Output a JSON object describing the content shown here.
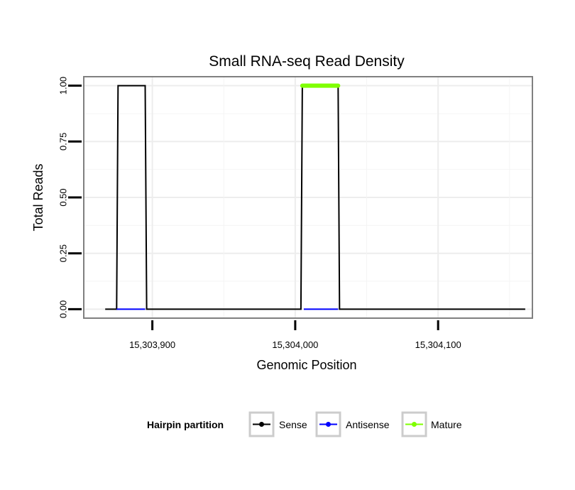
{
  "chart_data": {
    "type": "line",
    "title": "Small RNA-seq Read Density",
    "xlabel": "Genomic Position",
    "ylabel": "Total Reads",
    "xlim": [
      15303852,
      15304166
    ],
    "ylim": [
      -0.04,
      1.04
    ],
    "x_ticks": [
      {
        "value": 15303900,
        "label": "15,303,900"
      },
      {
        "value": 15304000,
        "label": "15,304,000"
      },
      {
        "value": 15304100,
        "label": "15,304,100"
      }
    ],
    "y_ticks": [
      {
        "value": 0.0,
        "label": "0.00"
      },
      {
        "value": 0.25,
        "label": "0.25"
      },
      {
        "value": 0.5,
        "label": "0.50"
      },
      {
        "value": 0.75,
        "label": "0.75"
      },
      {
        "value": 1.0,
        "label": "1.00"
      }
    ],
    "grid": true,
    "series": [
      {
        "name": "Sense",
        "color": "#000000",
        "x": [
          15303867,
          15303875,
          15303876,
          15303895,
          15303896,
          15304004,
          15304005,
          15304030,
          15304031,
          15304161
        ],
        "y": [
          0,
          0,
          1,
          1,
          0,
          0,
          1,
          1,
          0,
          0
        ]
      },
      {
        "name": "Antisense",
        "color": "#0000ff",
        "x": [
          15303875,
          15303895,
          15303896,
          15304005,
          15304006,
          15304030
        ],
        "y": [
          0,
          0,
          null,
          null,
          0,
          0
        ]
      },
      {
        "name": "Mature",
        "color": "#7fff00",
        "x": [
          15304005,
          15304030
        ],
        "y": [
          1,
          1
        ]
      }
    ],
    "legend": {
      "title": "Hairpin partition",
      "position": "bottom",
      "entries": [
        {
          "name": "Sense",
          "color": "#000000"
        },
        {
          "name": "Antisense",
          "color": "#0000ff"
        },
        {
          "name": "Mature",
          "color": "#7fff00"
        }
      ]
    }
  }
}
